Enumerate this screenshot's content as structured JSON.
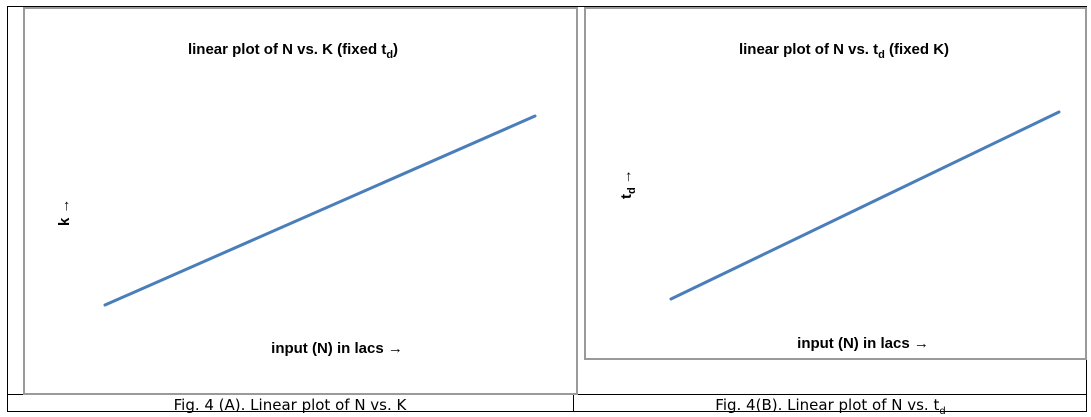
{
  "charts": [
    {
      "title_main": "linear plot of N vs. K (fixed t",
      "title_sub": "d",
      "title_tail": ")",
      "xlabel": "input (N) in lacs →",
      "ylabel_main": "k",
      "ylabel_sub": "",
      "ylabel_arrow": "→",
      "caption": "Fig. 4 (A). Linear plot of N vs. K"
    },
    {
      "title_main": "linear plot of N vs. t",
      "title_sub": "d",
      "title_tail": " (fixed K)",
      "xlabel": "input (N) in lacs →",
      "ylabel_main": "t",
      "ylabel_sub": "d",
      "ylabel_arrow": "→",
      "caption_main": "Fig. 4(B). Linear plot of N vs. t",
      "caption_sub": "d"
    }
  ],
  "chart_data": [
    {
      "type": "line",
      "title": "linear plot of N vs. K (fixed td)",
      "xlabel": "input (N) in lacs",
      "ylabel": "k",
      "x": [
        0,
        1
      ],
      "series": [
        {
          "values": [
            0,
            1
          ]
        }
      ],
      "color": "#4a7ebb",
      "grid": false,
      "ticks": false
    },
    {
      "type": "line",
      "title": "linear plot of N vs. td (fixed K)",
      "xlabel": "input (N) in lacs",
      "ylabel": "td",
      "x": [
        0,
        1
      ],
      "series": [
        {
          "values": [
            0,
            1
          ]
        }
      ],
      "color": "#4a7ebb",
      "grid": false,
      "ticks": false
    }
  ]
}
